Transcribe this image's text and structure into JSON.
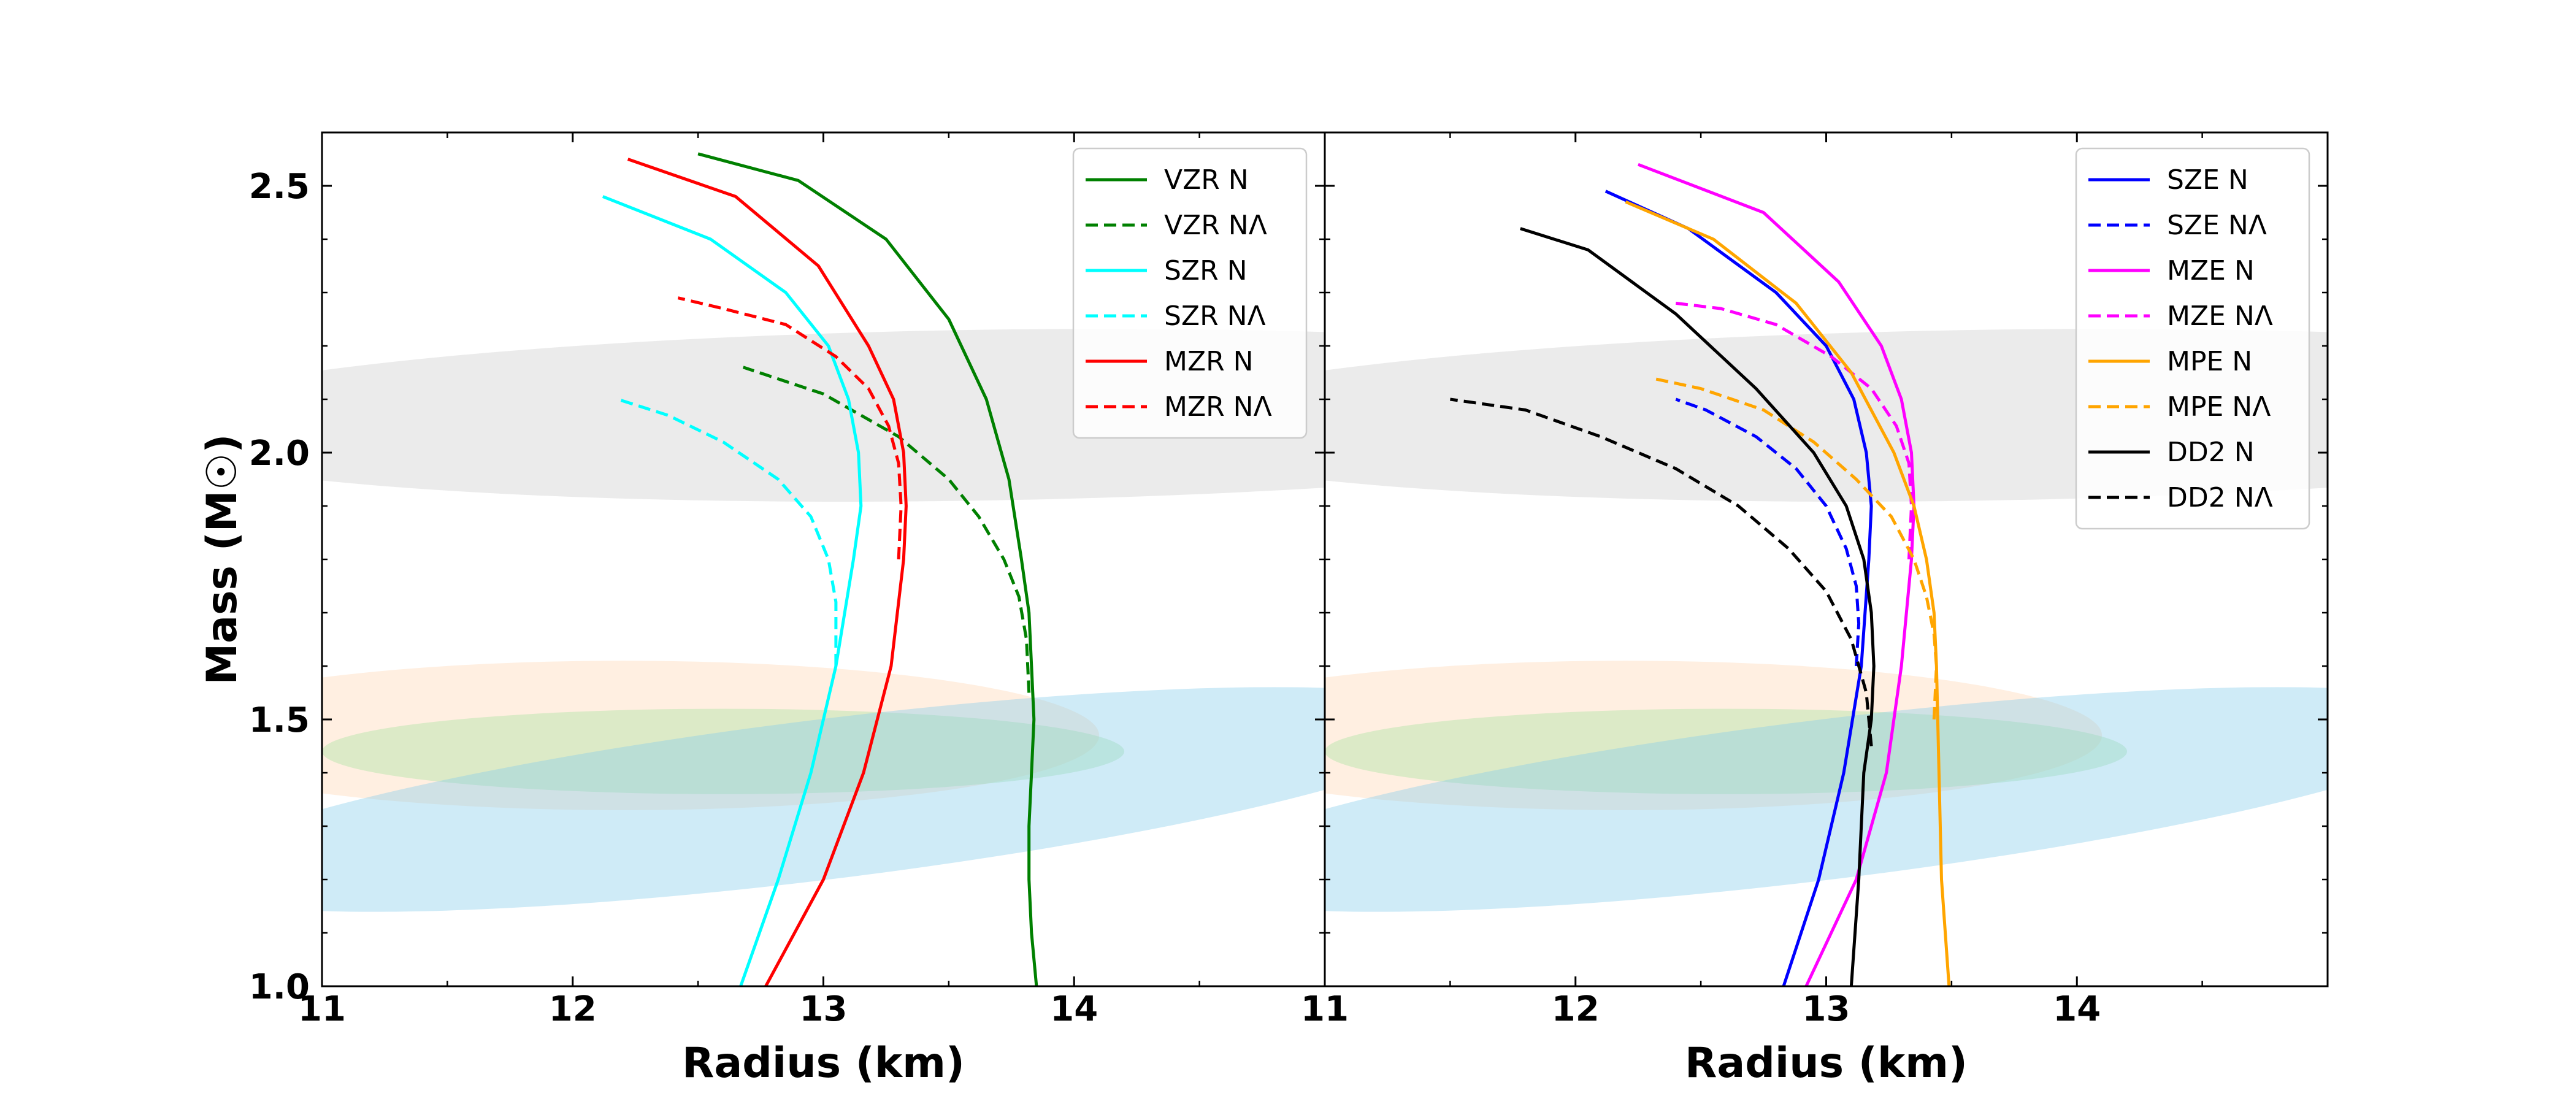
{
  "chart_data": {
    "type": "line",
    "ylabel": "Mass (M☉)",
    "ylim": [
      1.0,
      2.6
    ],
    "yticks": [
      "1.0",
      "1.5",
      "2.0",
      "2.5"
    ],
    "bands": [
      {
        "name": "gray-constraint",
        "color": "#d3d3d3",
        "cx": 13.6,
        "cy": 2.07,
        "rx": 3.4,
        "ry": 0.16,
        "rot_deg": 0.9
      },
      {
        "name": "peach-constraint",
        "color": "#ffd7b3",
        "cx": 12.2,
        "cy": 1.47,
        "rx": 1.9,
        "ry": 0.14,
        "rot_deg": 0
      },
      {
        "name": "green-constraint",
        "color": "#a8e4a0",
        "cx": 12.6,
        "cy": 1.44,
        "rx": 1.6,
        "ry": 0.08,
        "rot_deg": 0
      },
      {
        "name": "blue-constraint",
        "color": "#87ceeb",
        "cx": 13.0,
        "cy": 1.35,
        "rx": 2.6,
        "ry": 0.15,
        "rot_deg": 7
      }
    ],
    "panels": [
      {
        "xlabel": "Radius (km)",
        "xlim": [
          11.0,
          15.0
        ],
        "xticks": [
          "11",
          "12",
          "13",
          "14",
          "11"
        ],
        "series": [
          {
            "name": "VZR N",
            "color": "#008000",
            "dash": false,
            "r": [
              13.85,
              13.83,
              13.82,
              13.82,
              13.83,
              13.84,
              13.83,
              13.82,
              13.79,
              13.74,
              13.65,
              13.5,
              13.25,
              12.9,
              12.5
            ],
            "m": [
              1.0,
              1.1,
              1.2,
              1.3,
              1.4,
              1.5,
              1.6,
              1.7,
              1.8,
              1.95,
              2.1,
              2.25,
              2.4,
              2.51,
              2.56
            ]
          },
          {
            "name": "VZR NΛ",
            "color": "#008000",
            "dash": true,
            "r": [
              13.82,
              13.81,
              13.78,
              13.72,
              13.62,
              13.5,
              13.3,
              13.0,
              12.68
            ],
            "m": [
              1.55,
              1.65,
              1.73,
              1.8,
              1.88,
              1.95,
              2.03,
              2.11,
              2.16
            ]
          },
          {
            "name": "SZR N",
            "color": "#00ffff",
            "dash": false,
            "r": [
              12.67,
              12.82,
              12.95,
              13.05,
              13.12,
              13.15,
              13.14,
              13.1,
              13.02,
              12.85,
              12.55,
              12.12
            ],
            "m": [
              1.0,
              1.2,
              1.4,
              1.6,
              1.8,
              1.9,
              2.0,
              2.1,
              2.2,
              2.3,
              2.4,
              2.48
            ]
          },
          {
            "name": "SZR NΛ",
            "color": "#00ffff",
            "dash": true,
            "r": [
              13.05,
              13.05,
              13.02,
              12.95,
              12.82,
              12.6,
              12.38,
              12.18
            ],
            "m": [
              1.6,
              1.72,
              1.8,
              1.88,
              1.95,
              2.02,
              2.07,
              2.1
            ]
          },
          {
            "name": "MZR N",
            "color": "#ff0000",
            "dash": false,
            "r": [
              12.77,
              13.0,
              13.16,
              13.27,
              13.32,
              13.33,
              13.32,
              13.28,
              13.18,
              12.98,
              12.65,
              12.22
            ],
            "m": [
              1.0,
              1.2,
              1.4,
              1.6,
              1.8,
              1.9,
              2.0,
              2.1,
              2.2,
              2.35,
              2.48,
              2.55
            ]
          },
          {
            "name": "MZR NΛ",
            "color": "#ff0000",
            "dash": true,
            "r": [
              13.3,
              13.31,
              13.3,
              13.26,
              13.18,
              13.05,
              12.85,
              12.6,
              12.42
            ],
            "m": [
              1.8,
              1.9,
              1.98,
              2.05,
              2.12,
              2.18,
              2.24,
              2.27,
              2.29
            ]
          }
        ]
      },
      {
        "xlabel": "Radius (km)",
        "xlim": [
          11.0,
          15.0
        ],
        "xticks": [
          "11",
          "12",
          "13",
          "14"
        ],
        "series": [
          {
            "name": "SZE N",
            "color": "#0000ff",
            "dash": false,
            "r": [
              12.83,
              12.97,
              13.07,
              13.14,
              13.17,
              13.18,
              13.16,
              13.11,
              13.0,
              12.8,
              12.45,
              12.12
            ],
            "m": [
              1.0,
              1.2,
              1.4,
              1.6,
              1.8,
              1.9,
              2.0,
              2.1,
              2.2,
              2.3,
              2.42,
              2.49
            ]
          },
          {
            "name": "SZE NΛ",
            "color": "#0000ff",
            "dash": true,
            "r": [
              13.12,
              13.13,
              13.12,
              13.08,
              13.0,
              12.88,
              12.72,
              12.52,
              12.4
            ],
            "m": [
              1.6,
              1.68,
              1.75,
              1.82,
              1.9,
              1.97,
              2.03,
              2.08,
              2.1
            ]
          },
          {
            "name": "MZE N",
            "color": "#ff00ff",
            "dash": false,
            "r": [
              12.92,
              13.12,
              13.24,
              13.3,
              13.34,
              13.35,
              13.34,
              13.3,
              13.22,
              13.05,
              12.75,
              12.25
            ],
            "m": [
              1.0,
              1.2,
              1.4,
              1.6,
              1.8,
              1.9,
              2.0,
              2.1,
              2.2,
              2.32,
              2.45,
              2.54
            ]
          },
          {
            "name": "MZE NΛ",
            "color": "#ff00ff",
            "dash": true,
            "r": [
              13.33,
              13.34,
              13.33,
              13.28,
              13.18,
              13.02,
              12.8,
              12.58,
              12.4
            ],
            "m": [
              1.8,
              1.9,
              1.98,
              2.05,
              2.12,
              2.18,
              2.24,
              2.27,
              2.28
            ]
          },
          {
            "name": "MPE N",
            "color": "#ffa500",
            "dash": false,
            "r": [
              13.49,
              13.46,
              13.45,
              13.44,
              13.43,
              13.4,
              13.35,
              13.27,
              13.1,
              12.88,
              12.55,
              12.2
            ],
            "m": [
              1.0,
              1.2,
              1.4,
              1.6,
              1.7,
              1.8,
              1.9,
              2.0,
              2.15,
              2.28,
              2.4,
              2.47
            ]
          },
          {
            "name": "MPE NΛ",
            "color": "#ffa500",
            "dash": true,
            "r": [
              13.43,
              13.44,
              13.43,
              13.4,
              13.35,
              13.26,
              13.12,
              12.95,
              12.75,
              12.5,
              12.3
            ],
            "m": [
              1.5,
              1.6,
              1.66,
              1.73,
              1.8,
              1.88,
              1.95,
              2.02,
              2.08,
              2.12,
              2.14
            ]
          },
          {
            "name": "DD2 N",
            "color": "#000000",
            "dash": false,
            "r": [
              13.1,
              13.13,
              13.15,
              13.18,
              13.19,
              13.18,
              13.15,
              13.08,
              12.95,
              12.72,
              12.4,
              12.05,
              11.78
            ],
            "m": [
              1.0,
              1.2,
              1.4,
              1.5,
              1.6,
              1.7,
              1.8,
              1.9,
              2.0,
              2.12,
              2.26,
              2.38,
              2.42
            ]
          },
          {
            "name": "DD2 NΛ",
            "color": "#000000",
            "dash": true,
            "r": [
              13.18,
              13.16,
              13.1,
              13.0,
              12.85,
              12.65,
              12.4,
              12.1,
              11.8,
              11.5
            ],
            "m": [
              1.45,
              1.55,
              1.65,
              1.74,
              1.82,
              1.9,
              1.97,
              2.03,
              2.08,
              2.1
            ]
          }
        ]
      }
    ]
  }
}
